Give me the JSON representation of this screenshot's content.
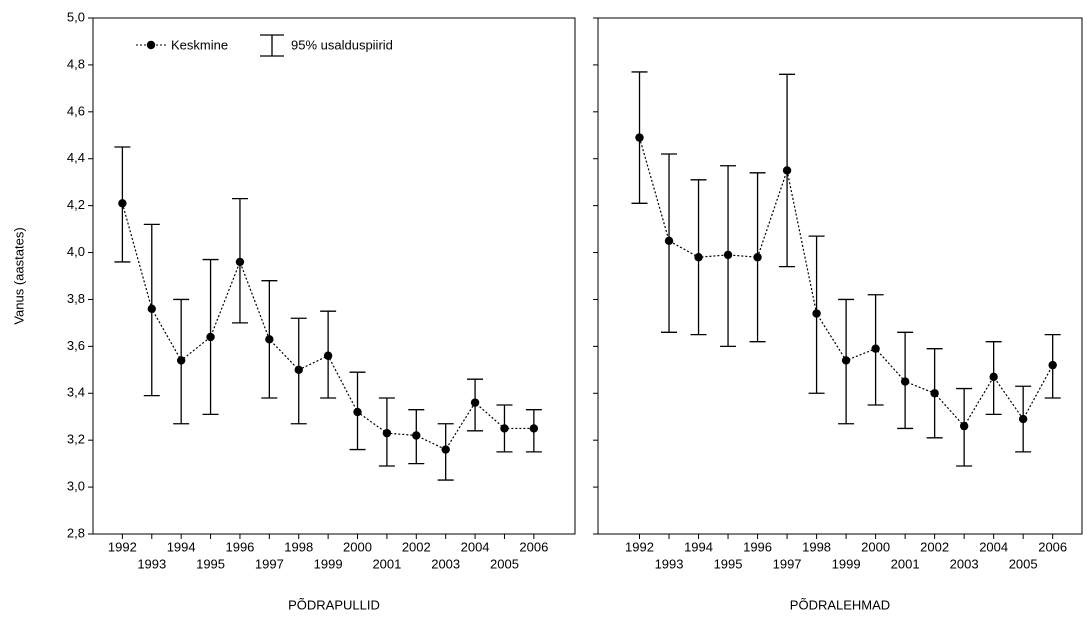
{
  "chart_data": [
    {
      "type": "errorbar-line",
      "ylabel": "Vanus (aastates)",
      "xlabel": "PÕDRAPULLID",
      "legend": "upper left",
      "error_name": "95% usalduspiirid",
      "ylim": [
        2.8,
        5.0
      ],
      "yticks": [
        {
          "value": 2.8,
          "label": "2,8"
        },
        {
          "value": 3.0,
          "label": "3,0"
        },
        {
          "value": 3.2,
          "label": "3,2"
        },
        {
          "value": 3.4,
          "label": "3,4"
        },
        {
          "value": 3.6,
          "label": "3,6"
        },
        {
          "value": 3.8,
          "label": "3,8"
        },
        {
          "value": 4.0,
          "label": "4,0"
        },
        {
          "value": 4.2,
          "label": "4,2"
        },
        {
          "value": 4.4,
          "label": "4,4"
        },
        {
          "value": 4.6,
          "label": "4,6"
        },
        {
          "value": 4.8,
          "label": "4,8"
        },
        {
          "value": 5.0,
          "label": "5,0"
        }
      ],
      "categories": [
        "1992",
        "1993",
        "1994",
        "1995",
        "1996",
        "1997",
        "1998",
        "1999",
        "2000",
        "2001",
        "2002",
        "2003",
        "2004",
        "2005",
        "2006"
      ],
      "series": [
        {
          "name": "Keskmine",
          "color": "#000000",
          "values": [
            4.21,
            3.76,
            3.54,
            3.64,
            3.96,
            3.63,
            3.5,
            3.56,
            3.32,
            3.23,
            3.22,
            3.16,
            3.36,
            3.25,
            3.25
          ],
          "ci_low": [
            3.96,
            3.39,
            3.27,
            3.31,
            3.7,
            3.38,
            3.27,
            3.38,
            3.16,
            3.09,
            3.1,
            3.03,
            3.24,
            3.15,
            3.15
          ],
          "ci_high": [
            4.45,
            4.12,
            3.8,
            3.97,
            4.23,
            3.88,
            3.72,
            3.75,
            3.49,
            3.38,
            3.33,
            3.27,
            3.46,
            3.35,
            3.33
          ]
        }
      ]
    },
    {
      "type": "errorbar-line",
      "xlabel": "PÕDRALEHMAD",
      "ylim": [
        2.8,
        5.0
      ],
      "categories": [
        "1992",
        "1993",
        "1994",
        "1995",
        "1996",
        "1997",
        "1998",
        "1999",
        "2000",
        "2001",
        "2002",
        "2003",
        "2004",
        "2005",
        "2006"
      ],
      "series": [
        {
          "color": "#000000",
          "values": [
            4.49,
            4.05,
            3.98,
            3.99,
            3.98,
            4.35,
            3.74,
            3.54,
            3.59,
            3.45,
            3.4,
            3.26,
            3.47,
            3.29,
            3.52
          ],
          "ci_low": [
            4.21,
            3.66,
            3.65,
            3.6,
            3.62,
            3.94,
            3.4,
            3.27,
            3.35,
            3.25,
            3.21,
            3.09,
            3.31,
            3.15,
            3.38
          ],
          "ci_high": [
            4.77,
            4.42,
            4.31,
            4.37,
            4.34,
            4.76,
            4.07,
            3.8,
            3.82,
            3.66,
            3.59,
            3.42,
            3.62,
            3.43,
            3.65
          ]
        }
      ]
    }
  ]
}
